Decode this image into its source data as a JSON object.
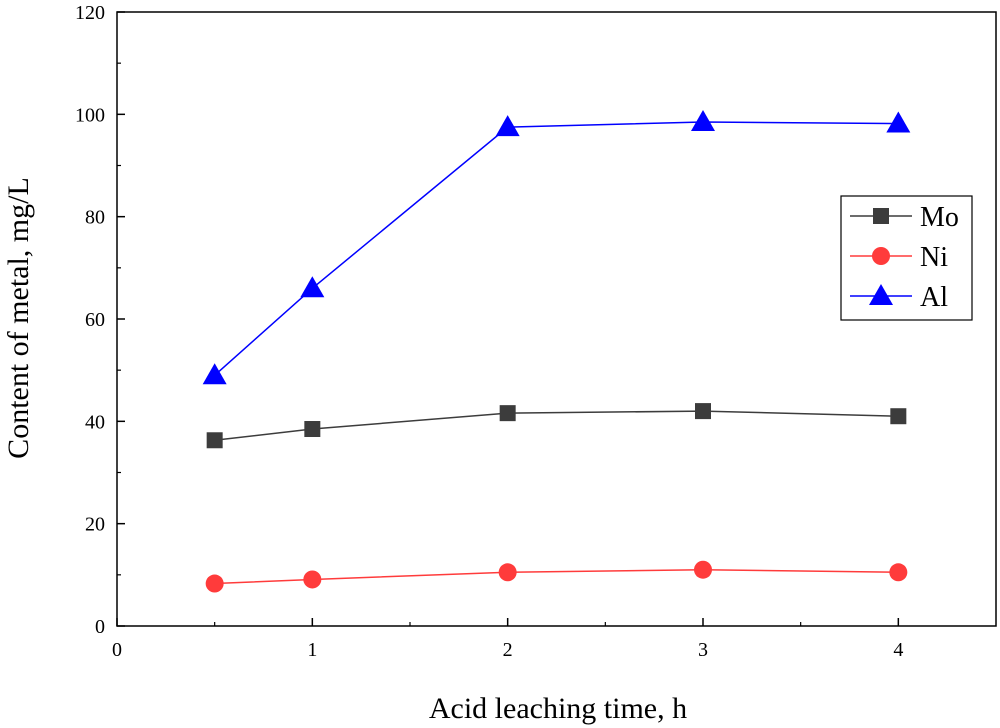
{
  "chart_data": {
    "type": "line",
    "title": "",
    "xlabel": "Acid leaching time, h",
    "ylabel": "Content of metal, mg/L",
    "xlim": [
      0,
      4.5
    ],
    "ylim": [
      0,
      120
    ],
    "x_ticks": [
      "0",
      "1",
      "2",
      "3",
      "4"
    ],
    "y_ticks": [
      "0",
      "20",
      "40",
      "60",
      "80",
      "100",
      "120"
    ],
    "grid": false,
    "legend_position": "right",
    "x": [
      0.5,
      1,
      2,
      3,
      4
    ],
    "series": [
      {
        "name": "Mo",
        "values": [
          36.3,
          38.5,
          41.6,
          42.0,
          41.0
        ],
        "color": "#3c3c3c",
        "marker": "square"
      },
      {
        "name": "Ni",
        "values": [
          8.3,
          9.1,
          10.5,
          11.0,
          10.5
        ],
        "color": "#ff3b3b",
        "marker": "circle"
      },
      {
        "name": "Al",
        "values": [
          49.0,
          66.0,
          97.5,
          98.5,
          98.2
        ],
        "color": "#0000ff",
        "marker": "triangle"
      }
    ]
  }
}
